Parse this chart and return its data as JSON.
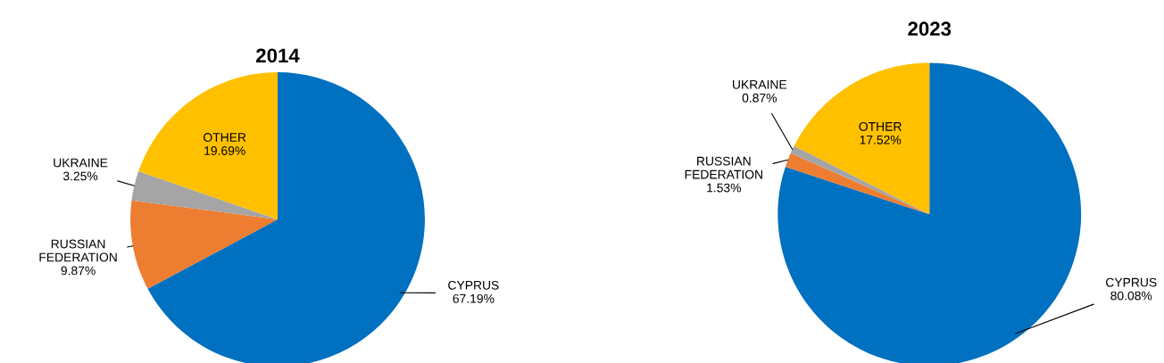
{
  "chart_data": [
    {
      "type": "pie",
      "title": "2014",
      "categories": [
        "CYPRUS",
        "RUSSIAN\nFEDERATION",
        "UKRAINE",
        "OTHER"
      ],
      "values": [
        67.19,
        9.87,
        3.25,
        19.69
      ],
      "colors": [
        "#0070c0",
        "#ed7d31",
        "#a5a5a5",
        "#ffc000"
      ],
      "value_labels": [
        "67.19%",
        "9.87%",
        "3.25%",
        "19.69%"
      ]
    },
    {
      "type": "pie",
      "title": "2023",
      "categories": [
        "CYPRUS",
        "RUSSIAN\nFEDERATION",
        "UKRAINE",
        "OTHER"
      ],
      "values": [
        80.08,
        1.53,
        0.87,
        17.52
      ],
      "colors": [
        "#0070c0",
        "#ed7d31",
        "#a5a5a5",
        "#ffc000"
      ],
      "value_labels": [
        "80.08%",
        "1.53%",
        "0.87%",
        "17.52%"
      ]
    }
  ]
}
